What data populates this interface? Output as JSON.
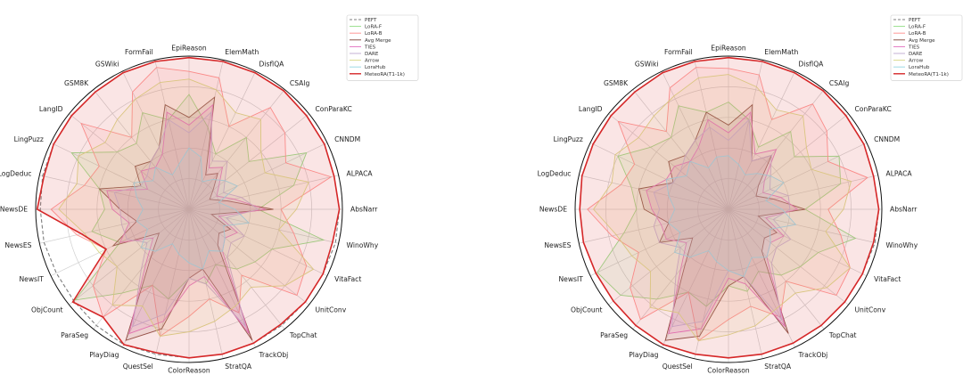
{
  "chart_data": [
    {
      "type": "radar",
      "axes": [
        "EpiReason",
        "ElemMath",
        "DisflQA",
        "CSAlg",
        "ConParaKC",
        "CNNDM",
        "ALPACA",
        "AbsNarr",
        "WinoWhy",
        "VitaFact",
        "UnitConv",
        "TopChat",
        "TrackObj",
        "StratQA",
        "ColorReason",
        "QuestSel",
        "PlayDiag",
        "ParaSeg",
        "ObjCount",
        "NewsIT",
        "NewsES",
        "NewsDE",
        "LogDeduc",
        "LingPuzz",
        "LangID",
        "GSM8K",
        "GSWiki",
        "FormFail"
      ],
      "rlim": [
        0,
        1
      ],
      "grid": true,
      "legend_position": "top-right",
      "series": [
        {
          "name": "PEFT",
          "style": "dashed",
          "color": "#7f7f7f",
          "values": [
            0.99,
            0.99,
            0.99,
            0.99,
            0.98,
            0.98,
            0.97,
            0.98,
            0.98,
            0.97,
            0.97,
            0.97,
            0.97,
            0.97,
            0.97,
            0.97,
            0.98,
            0.97,
            0.96,
            0.96,
            0.97,
            0.97,
            0.98,
            0.98,
            0.98,
            0.98,
            0.99,
            0.99
          ]
        },
        {
          "name": "LoRA-F",
          "color": "#98df8a",
          "values": [
            0.75,
            0.55,
            0.4,
            0.6,
            0.5,
            0.85,
            0.7,
            0.45,
            0.9,
            0.6,
            0.55,
            0.5,
            0.4,
            0.5,
            0.45,
            0.6,
            0.55,
            0.7,
            0.95,
            0.5,
            0.65,
            0.55,
            0.6,
            0.85,
            0.6,
            0.55,
            0.7,
            0.6
          ]
        },
        {
          "name": "LoRA-B",
          "color": "#ff9896",
          "values": [
            0.9,
            0.88,
            0.6,
            0.85,
            0.8,
            0.7,
            0.95,
            0.6,
            0.7,
            0.85,
            0.9,
            0.55,
            0.75,
            0.6,
            0.7,
            0.85,
            0.55,
            0.9,
            0.8,
            0.6,
            0.75,
            0.9,
            0.7,
            0.65,
            0.9,
            0.6,
            0.85,
            0.95
          ]
        },
        {
          "name": "Avg Merge",
          "color": "#8c564b",
          "values": [
            0.6,
            0.75,
            0.25,
            0.3,
            0.2,
            0.15,
            0.25,
            0.55,
            0.15,
            0.3,
            0.25,
            0.3,
            0.95,
            0.4,
            0.45,
            0.8,
            0.95,
            0.4,
            0.25,
            0.55,
            0.35,
            0.45,
            0.6,
            0.35,
            0.45,
            0.4,
            0.45,
            0.7
          ]
        },
        {
          "name": "TIES",
          "color": "#e377c2",
          "values": [
            0.55,
            0.7,
            0.3,
            0.35,
            0.25,
            0.2,
            0.3,
            0.5,
            0.2,
            0.35,
            0.3,
            0.35,
            0.9,
            0.45,
            0.5,
            0.75,
            0.9,
            0.45,
            0.3,
            0.5,
            0.4,
            0.5,
            0.55,
            0.3,
            0.4,
            0.35,
            0.4,
            0.65
          ]
        },
        {
          "name": "DARE",
          "color": "#c5b0d5",
          "values": [
            0.5,
            0.65,
            0.35,
            0.4,
            0.3,
            0.25,
            0.35,
            0.45,
            0.25,
            0.4,
            0.35,
            0.4,
            0.85,
            0.5,
            0.45,
            0.7,
            0.85,
            0.5,
            0.35,
            0.45,
            0.45,
            0.45,
            0.5,
            0.35,
            0.35,
            0.4,
            0.45,
            0.6
          ]
        },
        {
          "name": "Arrow",
          "color": "#dbdb8d",
          "values": [
            0.85,
            0.8,
            0.7,
            0.75,
            0.6,
            0.55,
            0.8,
            0.7,
            0.6,
            0.9,
            0.8,
            0.65,
            0.7,
            0.75,
            0.8,
            0.85,
            0.7,
            0.8,
            0.6,
            0.65,
            0.7,
            0.85,
            0.75,
            0.8,
            0.7,
            0.75,
            0.8,
            0.85
          ]
        },
        {
          "name": "LoraHub",
          "color": "#9edae5",
          "values": [
            0.4,
            0.35,
            0.2,
            0.25,
            0.3,
            0.35,
            0.2,
            0.3,
            0.4,
            0.25,
            0.3,
            0.35,
            0.3,
            0.4,
            0.35,
            0.3,
            0.25,
            0.35,
            0.4,
            0.3,
            0.35,
            0.3,
            0.35,
            0.4,
            0.3,
            0.35,
            0.25,
            0.3
          ]
        },
        {
          "name": "MeteoRA(T1-1k)",
          "color": "#d62728",
          "values": [
            0.99,
            0.99,
            0.99,
            0.99,
            0.98,
            0.98,
            0.97,
            0.98,
            0.96,
            0.97,
            0.97,
            0.96,
            0.97,
            0.97,
            0.97,
            0.96,
            0.98,
            0.9,
            0.97,
            0.6,
            0.72,
            0.99,
            0.97,
            0.98,
            0.98,
            0.98,
            0.99,
            0.99
          ]
        }
      ]
    },
    {
      "type": "radar",
      "axes": [
        "EpiReason",
        "ElemMath",
        "DisflQA",
        "CSAlg",
        "ConParaKC",
        "CNNDM",
        "ALPACA",
        "AbsNarr",
        "WinoWhy",
        "VitaFact",
        "UnitConv",
        "TopChat",
        "TrackObj",
        "StratQA",
        "ColorReason",
        "QuestSel",
        "PlayDiag",
        "ParaSeg",
        "ObjCount",
        "NewsIT",
        "NewsES",
        "NewsDE",
        "LogDeduc",
        "LingPuzz",
        "LangID",
        "GSM8K",
        "GSWiki",
        "FormFail"
      ],
      "rlim": [
        0,
        1
      ],
      "grid": true,
      "legend_position": "top-right",
      "series": [
        {
          "name": "PEFT",
          "style": "dashed",
          "color": "#7f7f7f",
          "values": [
            0.99,
            0.99,
            0.99,
            0.99,
            0.98,
            0.98,
            0.97,
            0.98,
            0.98,
            0.97,
            0.97,
            0.97,
            0.97,
            0.97,
            0.97,
            0.97,
            0.98,
            0.97,
            0.96,
            0.96,
            0.97,
            0.97,
            0.98,
            0.98,
            0.98,
            0.98,
            0.99,
            0.99
          ]
        },
        {
          "name": "LoRA-F",
          "color": "#98df8a",
          "values": [
            0.7,
            0.6,
            0.45,
            0.65,
            0.55,
            0.8,
            0.75,
            0.5,
            0.85,
            0.65,
            0.6,
            0.55,
            0.45,
            0.55,
            0.5,
            0.65,
            0.6,
            0.75,
            0.9,
            0.95,
            0.7,
            0.6,
            0.65,
            0.8,
            0.65,
            0.6,
            0.75,
            0.65
          ]
        },
        {
          "name": "LoRA-B",
          "color": "#ff9896",
          "values": [
            0.92,
            0.9,
            0.65,
            0.88,
            0.82,
            0.72,
            0.93,
            0.65,
            0.75,
            0.88,
            0.9,
            0.6,
            0.78,
            0.65,
            0.72,
            0.88,
            0.6,
            0.92,
            0.82,
            0.65,
            0.78,
            0.92,
            0.72,
            0.68,
            0.92,
            0.65,
            0.88,
            0.95
          ]
        },
        {
          "name": "Avg Merge",
          "color": "#8c564b",
          "values": [
            0.55,
            0.7,
            0.35,
            0.45,
            0.25,
            0.2,
            0.3,
            0.5,
            0.2,
            0.35,
            0.3,
            0.35,
            0.9,
            0.45,
            0.5,
            0.85,
            0.95,
            0.45,
            0.3,
            0.5,
            0.4,
            0.55,
            0.6,
            0.4,
            0.5,
            0.45,
            0.5,
            0.65
          ]
        },
        {
          "name": "TIES",
          "color": "#e377c2",
          "values": [
            0.5,
            0.65,
            0.4,
            0.5,
            0.3,
            0.25,
            0.35,
            0.45,
            0.25,
            0.4,
            0.35,
            0.4,
            0.85,
            0.5,
            0.45,
            0.8,
            0.9,
            0.5,
            0.35,
            0.45,
            0.45,
            0.5,
            0.55,
            0.45,
            0.45,
            0.4,
            0.45,
            0.6
          ]
        },
        {
          "name": "DARE",
          "color": "#c5b0d5",
          "values": [
            0.45,
            0.6,
            0.35,
            0.45,
            0.35,
            0.3,
            0.4,
            0.4,
            0.3,
            0.45,
            0.4,
            0.45,
            0.8,
            0.45,
            0.4,
            0.75,
            0.85,
            0.55,
            0.4,
            0.5,
            0.5,
            0.45,
            0.5,
            0.4,
            0.4,
            0.45,
            0.5,
            0.55
          ]
        },
        {
          "name": "Arrow",
          "color": "#dbdb8d",
          "values": [
            0.88,
            0.82,
            0.72,
            0.78,
            0.65,
            0.6,
            0.82,
            0.75,
            0.65,
            0.88,
            0.82,
            0.7,
            0.72,
            0.78,
            0.82,
            0.88,
            0.75,
            0.82,
            0.65,
            0.7,
            0.75,
            0.88,
            0.78,
            0.82,
            0.75,
            0.78,
            0.82,
            0.88
          ]
        },
        {
          "name": "LoraHub",
          "color": "#9edae5",
          "values": [
            0.35,
            0.3,
            0.25,
            0.3,
            0.35,
            0.4,
            0.25,
            0.35,
            0.45,
            0.3,
            0.35,
            0.4,
            0.35,
            0.45,
            0.4,
            0.35,
            0.3,
            0.4,
            0.45,
            0.35,
            0.4,
            0.35,
            0.4,
            0.45,
            0.35,
            0.4,
            0.3,
            0.35
          ]
        },
        {
          "name": "MeteoRA(T1-1k)",
          "color": "#d62728",
          "values": [
            0.99,
            0.99,
            0.99,
            0.99,
            0.98,
            0.98,
            0.97,
            0.98,
            0.97,
            0.97,
            0.97,
            0.97,
            0.97,
            0.97,
            0.97,
            0.97,
            0.98,
            0.97,
            0.96,
            0.96,
            0.97,
            0.97,
            0.98,
            0.98,
            0.98,
            0.98,
            0.99,
            0.99
          ]
        }
      ]
    }
  ]
}
